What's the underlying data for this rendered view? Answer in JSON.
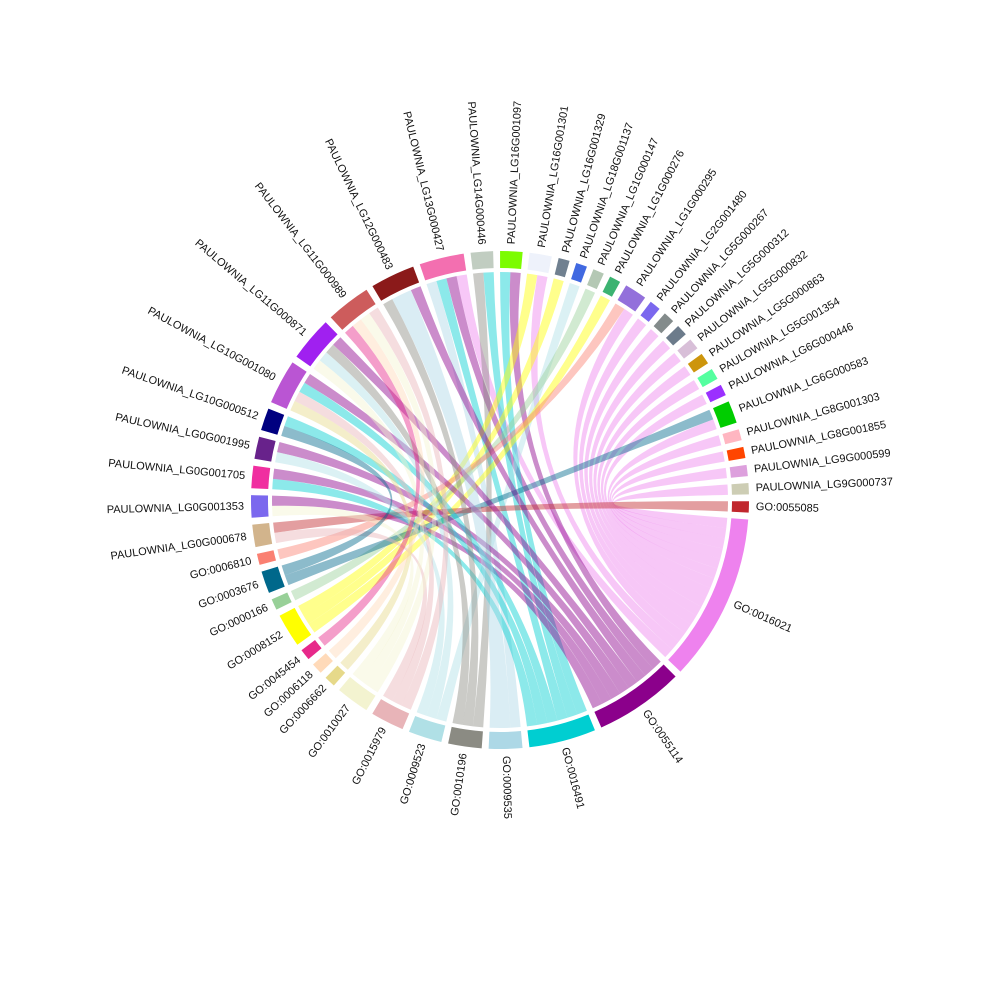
{
  "chart_data": {
    "type": "chord",
    "sectors": [
      {
        "name": "GO:0055085",
        "color": "#c1272d"
      },
      {
        "name": "GO:0016021",
        "color": "#ee82ee"
      },
      {
        "name": "GO:0055114",
        "color": "#8b008b"
      },
      {
        "name": "GO:0016491",
        "color": "#00ced1"
      },
      {
        "name": "GO:0009535",
        "color": "#add8e6"
      },
      {
        "name": "GO:0010196",
        "color": "#8b8b83"
      },
      {
        "name": "GO:0009523",
        "color": "#b0e0e6"
      },
      {
        "name": "GO:0015979",
        "color": "#e8b4b8"
      },
      {
        "name": "GO:0010027",
        "color": "#f3f3d0"
      },
      {
        "name": "GO:0006662",
        "color": "#e6d98a"
      },
      {
        "name": "GO:0006118",
        "color": "#ffdab9"
      },
      {
        "name": "GO:0045454",
        "color": "#e7298a"
      },
      {
        "name": "GO:0008152",
        "color": "#ffff00"
      },
      {
        "name": "GO:0000166",
        "color": "#98d098"
      },
      {
        "name": "GO:0003676",
        "color": "#00688b"
      },
      {
        "name": "GO:0006810",
        "color": "#fa8072"
      },
      {
        "name": "PAULOWNIA_LG0G000678",
        "color": "#d2b48c"
      },
      {
        "name": "PAULOWNIA_LG0G001353",
        "color": "#7b68ee"
      },
      {
        "name": "PAULOWNIA_LG0G001705",
        "color": "#f02ea0"
      },
      {
        "name": "PAULOWNIA_LG0G001995",
        "color": "#68228b"
      },
      {
        "name": "PAULOWNIA_LG10G000512",
        "color": "#000080"
      },
      {
        "name": "PAULOWNIA_LG10G001080",
        "color": "#ba55d3"
      },
      {
        "name": "PAULOWNIA_LG11G000871",
        "color": "#a020f0"
      },
      {
        "name": "PAULOWNIA_LG11G000989",
        "color": "#cd5c5c"
      },
      {
        "name": "PAULOWNIA_LG12G000483",
        "color": "#8b1a1a"
      },
      {
        "name": "PAULOWNIA_LG13G000427",
        "color": "#f36fb0"
      },
      {
        "name": "PAULOWNIA_LG14G000446",
        "color": "#c1cdc1"
      },
      {
        "name": "PAULOWNIA_LG16G001097",
        "color": "#7cfc00"
      },
      {
        "name": "PAULOWNIA_LG16G001301",
        "color": "#eef2fb"
      },
      {
        "name": "PAULOWNIA_LG16G001329",
        "color": "#708090"
      },
      {
        "name": "PAULOWNIA_LG18G001137",
        "color": "#4169e1"
      },
      {
        "name": "PAULOWNIA_LG1G000147",
        "color": "#b4c8b4"
      },
      {
        "name": "PAULOWNIA_LG1G000276",
        "color": "#3cb371"
      },
      {
        "name": "PAULOWNIA_LG1G000295",
        "color": "#9370db"
      },
      {
        "name": "PAULOWNIA_LG2G001480",
        "color": "#7b68ee"
      },
      {
        "name": "PAULOWNIA_LG5G000267",
        "color": "#838b8b"
      },
      {
        "name": "PAULOWNIA_LG5G000312",
        "color": "#6c7b8b"
      },
      {
        "name": "PAULOWNIA_LG5G000832",
        "color": "#d8bfd8"
      },
      {
        "name": "PAULOWNIA_LG5G000863",
        "color": "#cd950c"
      },
      {
        "name": "PAULOWNIA_LG5G001354",
        "color": "#54ff9f"
      },
      {
        "name": "PAULOWNIA_LG6G000446",
        "color": "#9b30ff"
      },
      {
        "name": "PAULOWNIA_LG6G000583",
        "color": "#00cd00"
      },
      {
        "name": "PAULOWNIA_LG8G001303",
        "color": "#ffb6c1"
      },
      {
        "name": "PAULOWNIA_LG8G001855",
        "color": "#ff4500"
      },
      {
        "name": "PAULOWNIA_LG9G000599",
        "color": "#dda0dd"
      },
      {
        "name": "PAULOWNIA_LG9G000737",
        "color": "#cdcdb4"
      }
    ],
    "links": [
      {
        "source": "PAULOWNIA_LG13G000427",
        "target": "GO:0016491",
        "value": 1
      },
      {
        "source": "PAULOWNIA_LG13G000427",
        "target": "GO:0016021",
        "value": 1
      },
      {
        "source": "PAULOWNIA_LG13G000427",
        "target": "GO:0055114",
        "value": 1
      },
      {
        "source": "PAULOWNIA_LG13G000427",
        "target": "GO:0009535",
        "value": 1
      },
      {
        "source": "PAULOWNIA_LG14G000446",
        "target": "GO:0016491",
        "value": 1
      },
      {
        "source": "PAULOWNIA_LG14G000446",
        "target": "GO:0010196",
        "value": 1
      },
      {
        "source": "PAULOWNIA_LG16G001097",
        "target": "GO:0016491",
        "value": 1
      },
      {
        "source": "PAULOWNIA_LG16G001097",
        "target": "GO:0055114",
        "value": 1
      },
      {
        "source": "PAULOWNIA_LG16G001301",
        "target": "GO:0008152",
        "value": 1
      },
      {
        "source": "PAULOWNIA_LG16G001301",
        "target": "GO:0016021",
        "value": 1
      },
      {
        "source": "PAULOWNIA_LG16G001329",
        "target": "GO:0008152",
        "value": 1
      },
      {
        "source": "PAULOWNIA_LG18G001137",
        "target": "GO:0009523",
        "value": 1
      },
      {
        "source": "PAULOWNIA_LG1G000147",
        "target": "GO:0000166",
        "value": 1
      },
      {
        "source": "PAULOWNIA_LG1G000276",
        "target": "GO:0008152",
        "value": 1
      },
      {
        "source": "PAULOWNIA_LG1G000295",
        "target": "GO:0016021",
        "value": 1
      },
      {
        "source": "PAULOWNIA_LG1G000295",
        "target": "GO:0006810",
        "value": 1
      },
      {
        "source": "PAULOWNIA_LG2G001480",
        "target": "GO:0016021",
        "value": 1
      },
      {
        "source": "PAULOWNIA_LG5G000267",
        "target": "GO:0016021",
        "value": 1
      },
      {
        "source": "PAULOWNIA_LG5G000312",
        "target": "GO:0016021",
        "value": 1
      },
      {
        "source": "PAULOWNIA_LG5G000832",
        "target": "GO:0016021",
        "value": 1
      },
      {
        "source": "PAULOWNIA_LG5G000863",
        "target": "GO:0016021",
        "value": 1
      },
      {
        "source": "PAULOWNIA_LG5G001354",
        "target": "GO:0016021",
        "value": 1
      },
      {
        "source": "PAULOWNIA_LG6G000446",
        "target": "GO:0016021",
        "value": 1
      },
      {
        "source": "PAULOWNIA_LG6G000583",
        "target": "GO:0003676",
        "value": 1
      },
      {
        "source": "PAULOWNIA_LG6G000583",
        "target": "GO:0016021",
        "value": 1
      },
      {
        "source": "PAULOWNIA_LG8G001303",
        "target": "GO:0016021",
        "value": 1
      },
      {
        "source": "PAULOWNIA_LG8G001855",
        "target": "GO:0016021",
        "value": 1
      },
      {
        "source": "PAULOWNIA_LG9G000599",
        "target": "GO:0016021",
        "value": 1
      },
      {
        "source": "PAULOWNIA_LG9G000737",
        "target": "GO:0016021",
        "value": 1
      },
      {
        "source": "PAULOWNIA_LG0G000678",
        "target": "GO:0055085",
        "value": 1
      },
      {
        "source": "PAULOWNIA_LG0G000678",
        "target": "GO:0015979",
        "value": 1
      },
      {
        "source": "PAULOWNIA_LG0G001353",
        "target": "GO:0055114",
        "value": 1
      },
      {
        "source": "PAULOWNIA_LG0G001353",
        "target": "GO:0010027",
        "value": 1
      },
      {
        "source": "PAULOWNIA_LG0G001705",
        "target": "GO:0016491",
        "value": 1
      },
      {
        "source": "PAULOWNIA_LG0G001705",
        "target": "GO:0055114",
        "value": 1
      },
      {
        "source": "PAULOWNIA_LG0G001995",
        "target": "GO:0055114",
        "value": 1
      },
      {
        "source": "PAULOWNIA_LG0G001995",
        "target": "GO:0009523",
        "value": 1
      },
      {
        "source": "PAULOWNIA_LG10G000512",
        "target": "GO:0016491",
        "value": 1
      },
      {
        "source": "PAULOWNIA_LG10G000512",
        "target": "GO:0003676",
        "value": 1
      },
      {
        "source": "PAULOWNIA_LG10G001080",
        "target": "GO:0055114",
        "value": 1
      },
      {
        "source": "PAULOWNIA_LG10G001080",
        "target": "GO:0016491",
        "value": 1
      },
      {
        "source": "PAULOWNIA_LG10G001080",
        "target": "GO:0015979",
        "value": 1
      },
      {
        "source": "PAULOWNIA_LG10G001080",
        "target": "GO:0006662",
        "value": 1
      },
      {
        "source": "PAULOWNIA_LG11G000871",
        "target": "GO:0055114",
        "value": 1
      },
      {
        "source": "PAULOWNIA_LG11G000871",
        "target": "GO:0010196",
        "value": 1
      },
      {
        "source": "PAULOWNIA_LG11G000871",
        "target": "GO:0009523",
        "value": 1
      },
      {
        "source": "PAULOWNIA_LG11G000871",
        "target": "GO:0010027",
        "value": 1
      },
      {
        "source": "PAULOWNIA_LG11G000989",
        "target": "GO:0045454",
        "value": 1
      },
      {
        "source": "PAULOWNIA_LG11G000989",
        "target": "GO:0015979",
        "value": 1
      },
      {
        "source": "PAULOWNIA_LG11G000989",
        "target": "GO:0006118",
        "value": 1
      },
      {
        "source": "PAULOWNIA_LG11G000989",
        "target": "GO:0010027",
        "value": 1
      },
      {
        "source": "PAULOWNIA_LG12G000483",
        "target": "GO:0055114",
        "value": 1
      },
      {
        "source": "PAULOWNIA_LG12G000483",
        "target": "GO:0009535",
        "value": 2
      },
      {
        "source": "PAULOWNIA_LG12G000483",
        "target": "GO:0010196",
        "value": 1
      }
    ]
  }
}
